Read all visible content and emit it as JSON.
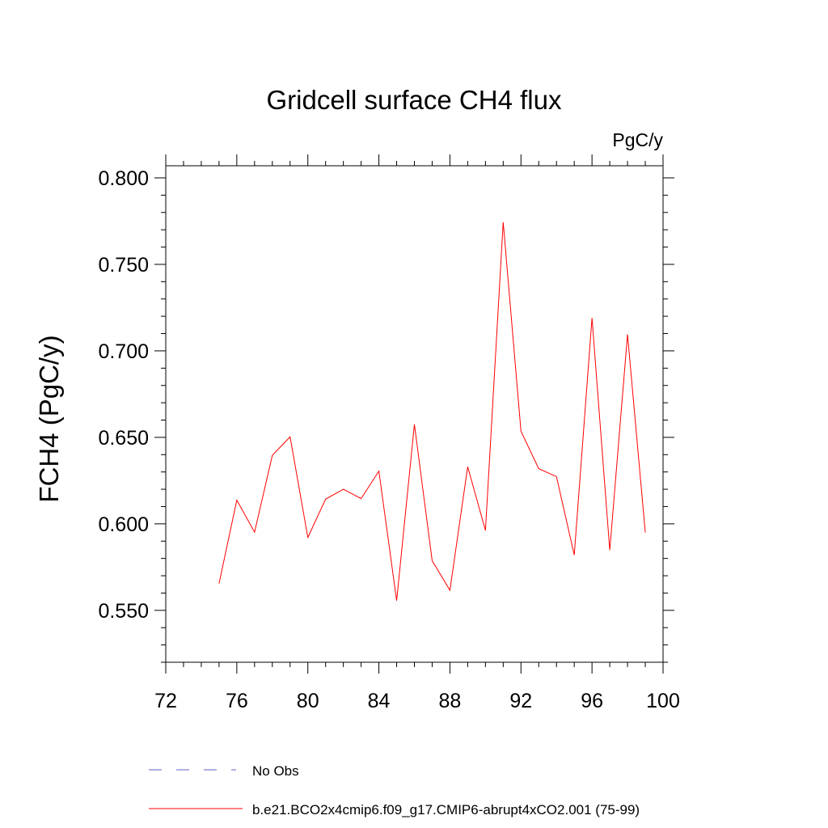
{
  "chart_data": {
    "type": "line",
    "title": "Gridcell surface CH4 flux",
    "units_label": "PgC/y",
    "ylabel": "FCH4  (PgC/y)",
    "xlabel": "",
    "xlim": [
      72,
      100
    ],
    "ylim": [
      0.52,
      0.807
    ],
    "x_ticks": [
      72,
      76,
      80,
      84,
      88,
      92,
      96,
      100
    ],
    "x_tick_labels": [
      "72",
      "76",
      "80",
      "84",
      "88",
      "92",
      "96",
      "100"
    ],
    "y_ticks": [
      0.55,
      0.6,
      0.65,
      0.7,
      0.75,
      0.8
    ],
    "y_tick_labels": [
      "0.550",
      "0.600",
      "0.650",
      "0.700",
      "0.750",
      "0.800"
    ],
    "grid": false,
    "legend_placement": "bottom",
    "series": [
      {
        "name": "No Obs",
        "color": "#6060c8",
        "style": "dashed",
        "x": [],
        "y": []
      },
      {
        "name": "b.e21.BCO2x4cmip6.f09_g17.CMIP6-abrupt4xCO2.001 (75-99)",
        "color": "#ff0000",
        "style": "solid",
        "x": [
          75,
          76,
          77,
          78,
          79,
          80,
          81,
          82,
          83,
          84,
          85,
          86,
          87,
          88,
          89,
          90,
          91,
          92,
          93,
          94,
          95,
          96,
          97,
          98,
          99
        ],
        "y": [
          0.5655,
          0.6137,
          0.5952,
          0.6396,
          0.6503,
          0.5921,
          0.6143,
          0.62,
          0.6146,
          0.6305,
          0.5556,
          0.6575,
          0.5787,
          0.5616,
          0.633,
          0.5962,
          0.7744,
          0.6535,
          0.6319,
          0.6273,
          0.582,
          0.719,
          0.5848,
          0.7095,
          0.595
        ]
      }
    ]
  }
}
